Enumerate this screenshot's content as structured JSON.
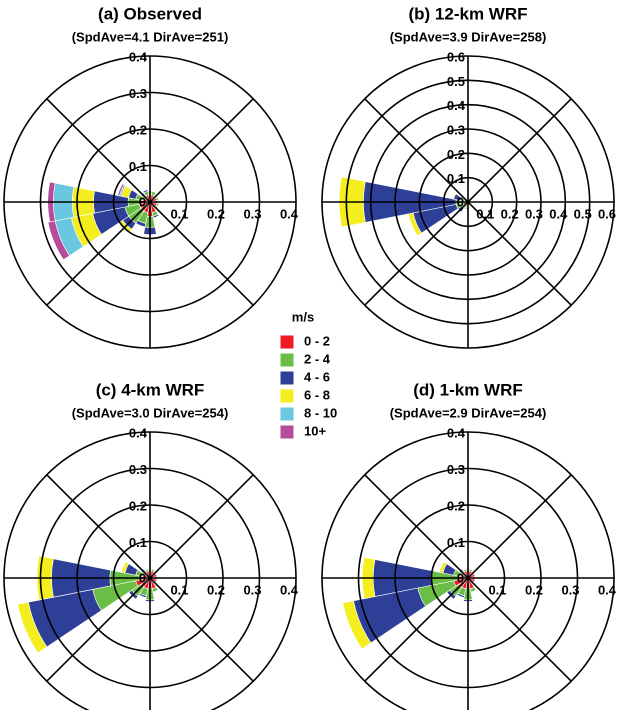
{
  "legend": {
    "title": "m/s",
    "items": [
      {
        "name": "0 - 2",
        "color": "#ee1c25"
      },
      {
        "name": "2 - 4",
        "color": "#6abd45"
      },
      {
        "name": "4 - 6",
        "color": "#2e3f98"
      },
      {
        "name": "6 - 8",
        "color": "#f4ee1e"
      },
      {
        "name": "8 - 10",
        "color": "#6bc6e0"
      },
      {
        "name": "10+",
        "color": "#b64a9b"
      }
    ]
  },
  "chart_data": [
    {
      "type": "rose",
      "title": "(a) Observed",
      "subtitle": "(SpdAve=4.1 DirAve=251)",
      "rlim": [
        0,
        0.4
      ],
      "rticks": [
        0,
        0.1,
        0.2,
        0.3,
        0.4
      ],
      "series": [
        {
          "values": [
            0.02,
            0.02,
            0.02,
            0.02,
            0.02,
            0.02,
            0.02,
            0.03,
            0.04,
            0.03,
            0.03,
            0.03,
            0.027,
            0.02,
            0.015,
            0.02
          ]
        },
        {
          "values": [
            0.01,
            0.01,
            0.005,
            0.005,
            0.005,
            0.005,
            0.005,
            0.01,
            0.03,
            0.03,
            0.04,
            0.04,
            0.033,
            0.02,
            0.01,
            0.01
          ]
        },
        {
          "values": [
            0,
            0,
            0,
            0,
            0,
            0,
            0,
            0.005,
            0.02,
            0.01,
            0.02,
            0.09,
            0.095,
            0.02,
            0.005,
            0.005
          ]
        },
        {
          "values": [
            0,
            0,
            0,
            0,
            0,
            0,
            0,
            0,
            0,
            0,
            0.01,
            0.06,
            0.058,
            0.02,
            0,
            0
          ]
        },
        {
          "values": [
            0,
            0,
            0,
            0,
            0,
            0,
            0,
            0,
            0,
            0,
            0,
            0.045,
            0.052,
            0.005,
            0,
            0
          ]
        },
        {
          "values": [
            0,
            0,
            0,
            0,
            0,
            0,
            0,
            0,
            0,
            0,
            0,
            0.02,
            0.015,
            0.005,
            0,
            0
          ]
        }
      ]
    },
    {
      "type": "rose",
      "title": "(b) 12-km WRF",
      "subtitle": "(SpdAve=3.9 DirAve=258)",
      "rlim": [
        0,
        0.6
      ],
      "rticks": [
        0,
        0.1,
        0.2,
        0.3,
        0.4,
        0.5,
        0.6
      ],
      "series": [
        {
          "values": [
            0.01,
            0.01,
            0.01,
            0.01,
            0.01,
            0.01,
            0.01,
            0.01,
            0.015,
            0.015,
            0.015,
            0.02,
            0.02,
            0.015,
            0.01,
            0.01
          ]
        },
        {
          "values": [
            0.005,
            0.005,
            0,
            0,
            0,
            0,
            0,
            0.005,
            0.01,
            0.01,
            0.015,
            0.03,
            0.03,
            0.015,
            0.005,
            0.005
          ]
        },
        {
          "values": [
            0,
            0,
            0,
            0,
            0,
            0,
            0,
            0,
            0.005,
            0.005,
            0.02,
            0.18,
            0.38,
            0.03,
            0.005,
            0
          ]
        },
        {
          "values": [
            0,
            0,
            0,
            0,
            0,
            0,
            0,
            0,
            0,
            0,
            0,
            0.02,
            0.1,
            0.005,
            0,
            0
          ]
        },
        {
          "values": [
            0,
            0,
            0,
            0,
            0,
            0,
            0,
            0,
            0,
            0,
            0,
            0,
            0,
            0,
            0,
            0
          ]
        },
        {
          "values": [
            0,
            0,
            0,
            0,
            0,
            0,
            0,
            0,
            0,
            0,
            0,
            0,
            0,
            0,
            0,
            0
          ]
        }
      ]
    },
    {
      "type": "rose",
      "title": "(c) 4-km WRF",
      "subtitle": "(SpdAve=3.0 DirAve=254)",
      "rlim": [
        0,
        0.4
      ],
      "rticks": [
        0,
        0.1,
        0.2,
        0.3,
        0.4
      ],
      "series": [
        {
          "values": [
            0.02,
            0.02,
            0.02,
            0.02,
            0.02,
            0.02,
            0.02,
            0.03,
            0.03,
            0.03,
            0.03,
            0.04,
            0.03,
            0.02,
            0.02,
            0.02
          ]
        },
        {
          "values": [
            0.005,
            0.005,
            0,
            0,
            0,
            0,
            0,
            0.01,
            0.03,
            0.02,
            0.03,
            0.12,
            0.08,
            0.02,
            0.005,
            0.005
          ]
        },
        {
          "values": [
            0,
            0,
            0,
            0,
            0,
            0,
            0,
            0,
            0.005,
            0.005,
            0.01,
            0.18,
            0.16,
            0.03,
            0.005,
            0
          ]
        },
        {
          "values": [
            0,
            0,
            0,
            0,
            0,
            0,
            0,
            0,
            0,
            0,
            0,
            0.03,
            0.04,
            0.01,
            0,
            0
          ]
        },
        {
          "values": [
            0,
            0,
            0,
            0,
            0,
            0,
            0,
            0,
            0,
            0,
            0,
            0,
            0,
            0,
            0,
            0
          ]
        },
        {
          "values": [
            0,
            0,
            0,
            0,
            0,
            0,
            0,
            0,
            0,
            0,
            0,
            0,
            0,
            0,
            0,
            0
          ]
        }
      ]
    },
    {
      "type": "rose",
      "title": "(d) 1-km WRF",
      "subtitle": "(SpdAve=2.9 DirAve=254)",
      "rlim": [
        0,
        0.4
      ],
      "rticks": [
        0,
        0.1,
        0.2,
        0.3,
        0.4
      ],
      "series": [
        {
          "values": [
            0.02,
            0.02,
            0.02,
            0.02,
            0.02,
            0.02,
            0.02,
            0.03,
            0.03,
            0.03,
            0.03,
            0.04,
            0.03,
            0.02,
            0.02,
            0.02
          ]
        },
        {
          "values": [
            0.005,
            0.005,
            0,
            0,
            0,
            0,
            0,
            0.01,
            0.03,
            0.02,
            0.03,
            0.1,
            0.07,
            0.02,
            0.005,
            0.005
          ]
        },
        {
          "values": [
            0,
            0,
            0,
            0,
            0,
            0,
            0,
            0,
            0.005,
            0.005,
            0.01,
            0.18,
            0.16,
            0.03,
            0.005,
            0
          ]
        },
        {
          "values": [
            0,
            0,
            0,
            0,
            0,
            0,
            0,
            0,
            0,
            0,
            0,
            0.03,
            0.03,
            0.01,
            0,
            0
          ]
        },
        {
          "values": [
            0,
            0,
            0,
            0,
            0,
            0,
            0,
            0,
            0,
            0,
            0,
            0,
            0,
            0,
            0,
            0
          ]
        },
        {
          "values": [
            0,
            0,
            0,
            0,
            0,
            0,
            0,
            0,
            0,
            0,
            0,
            0,
            0,
            0,
            0,
            0
          ]
        }
      ]
    }
  ]
}
